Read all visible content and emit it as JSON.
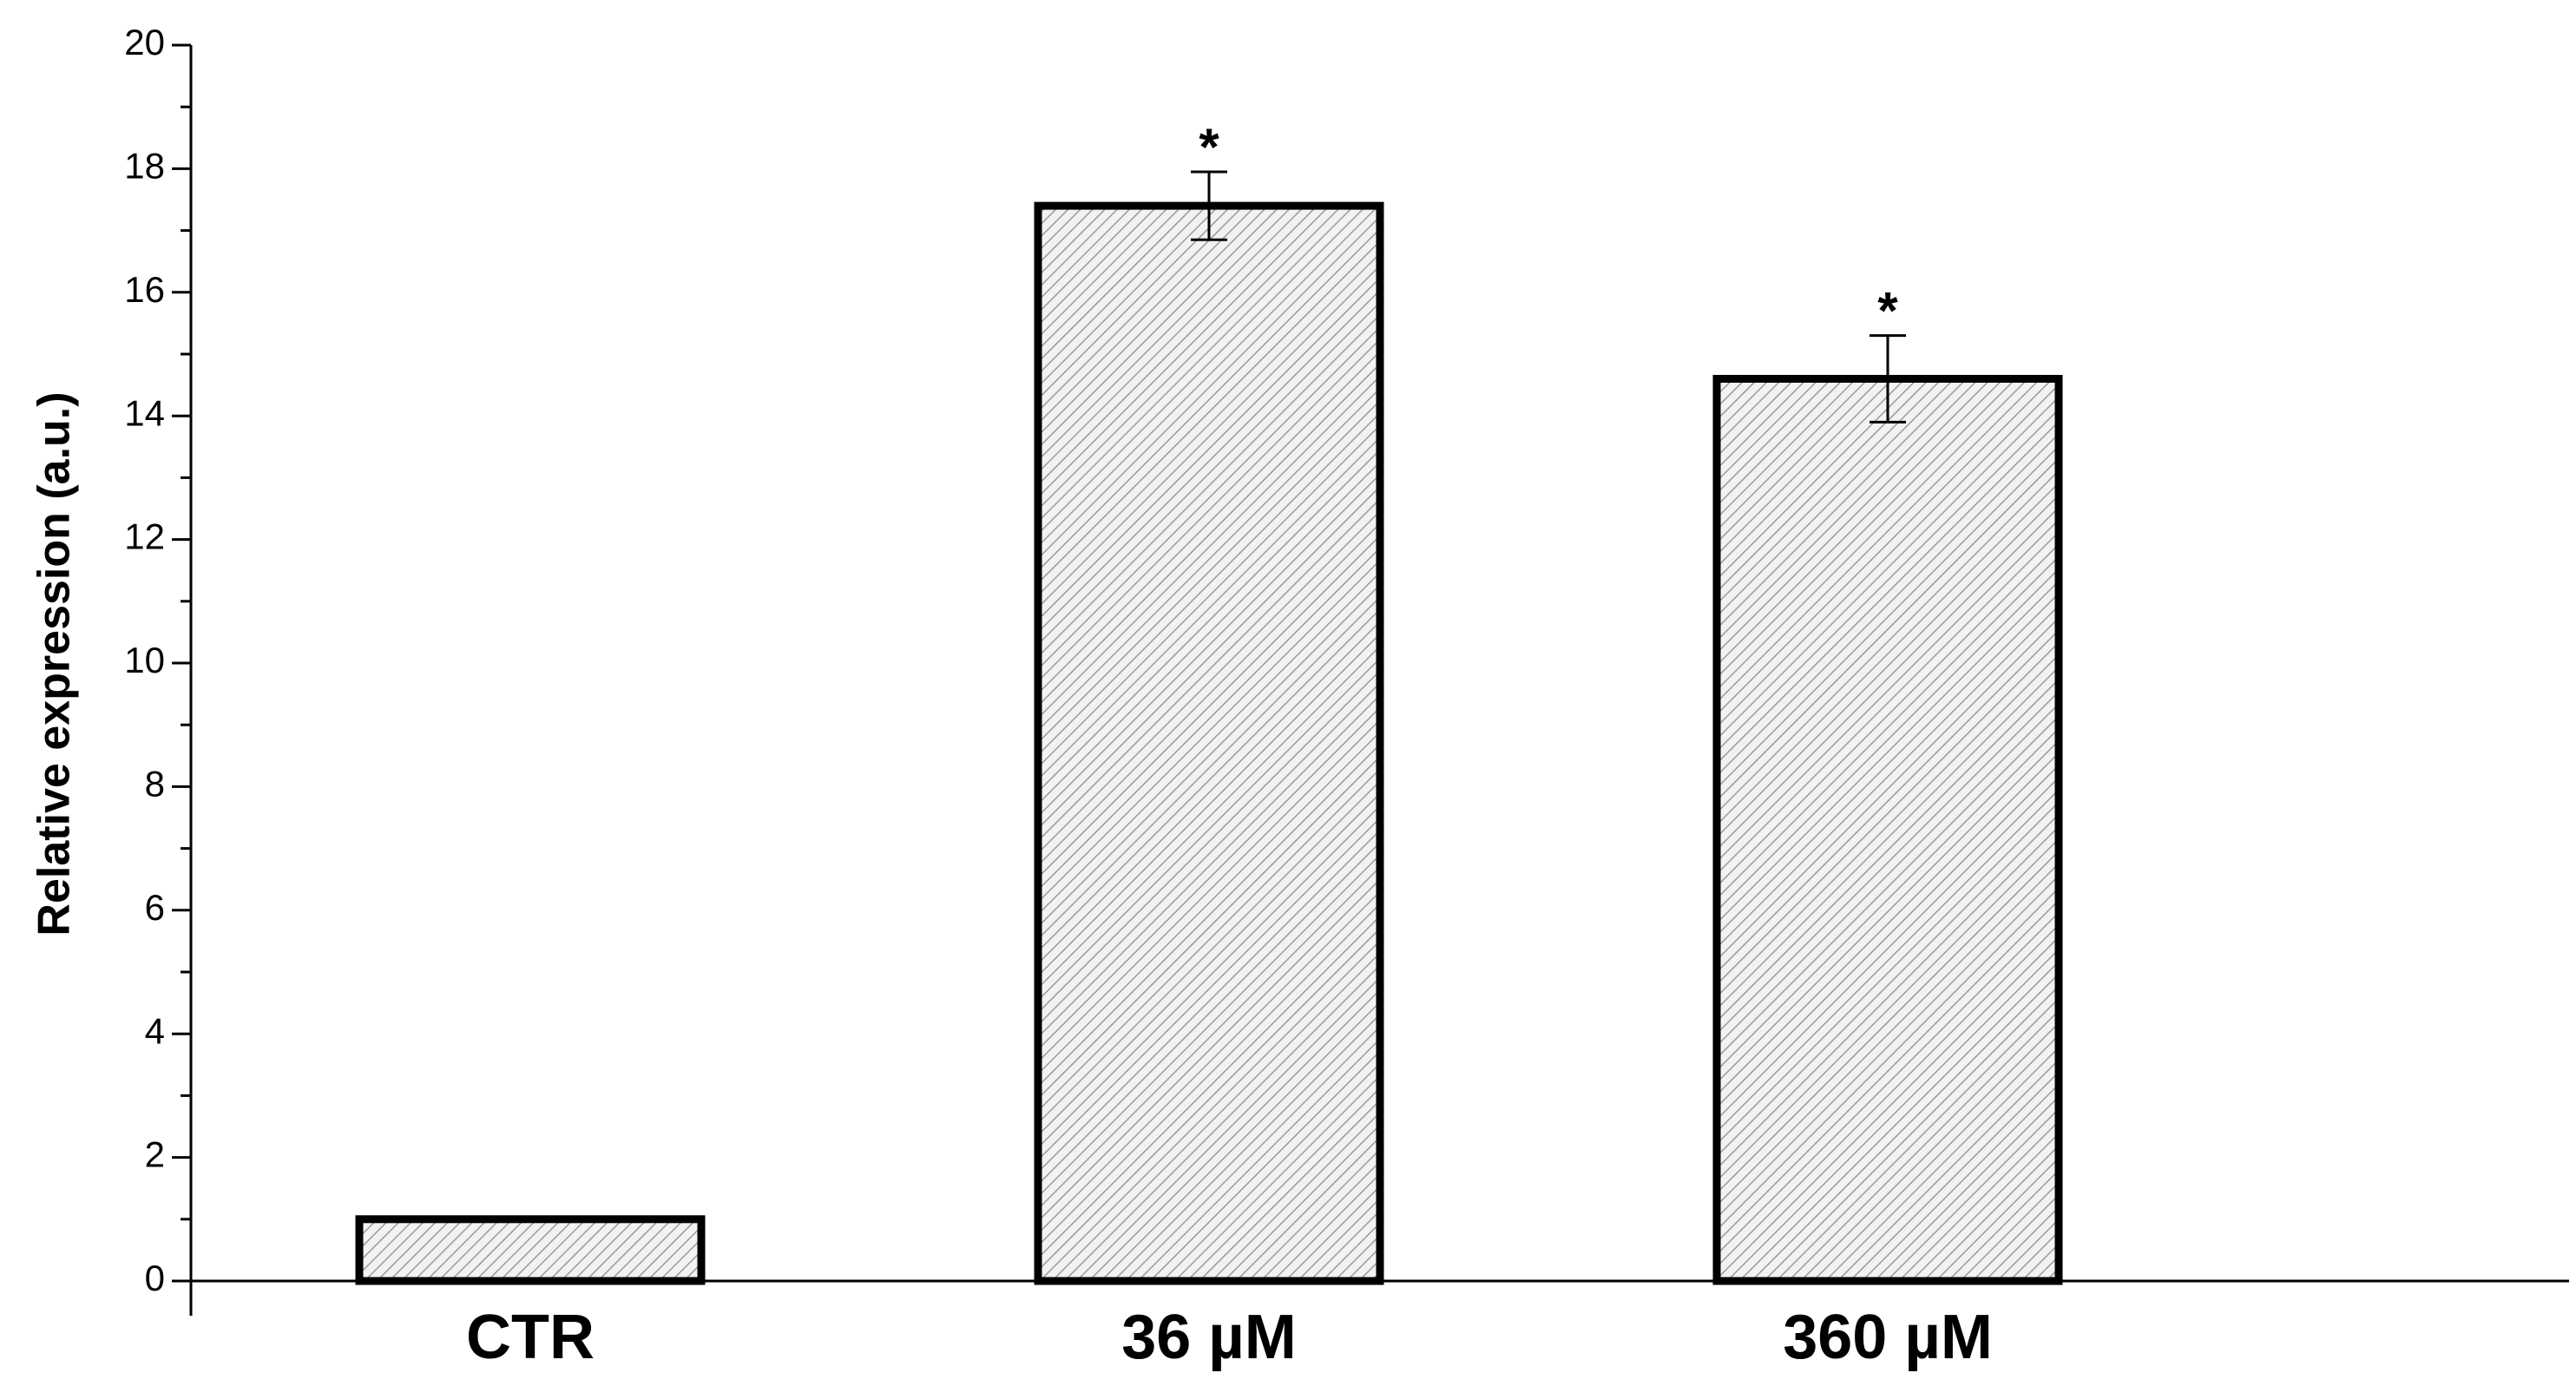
{
  "chart_data": {
    "type": "bar",
    "categories": [
      "CTR",
      "36 µM",
      "360 µM"
    ],
    "values": [
      1.0,
      17.4,
      14.6
    ],
    "errors": [
      null,
      0.55,
      0.7
    ],
    "annotations": [
      null,
      "*",
      "*"
    ],
    "y_label": "Relative expression (a.u.)",
    "ylim": [
      0,
      20
    ],
    "yticks": [
      0,
      2,
      4,
      6,
      8,
      10,
      12,
      14,
      16,
      18,
      20
    ],
    "minor_yticks": [
      1,
      3,
      5,
      7,
      9,
      11,
      13,
      15,
      17,
      19
    ],
    "color": "#b0b0b0"
  }
}
